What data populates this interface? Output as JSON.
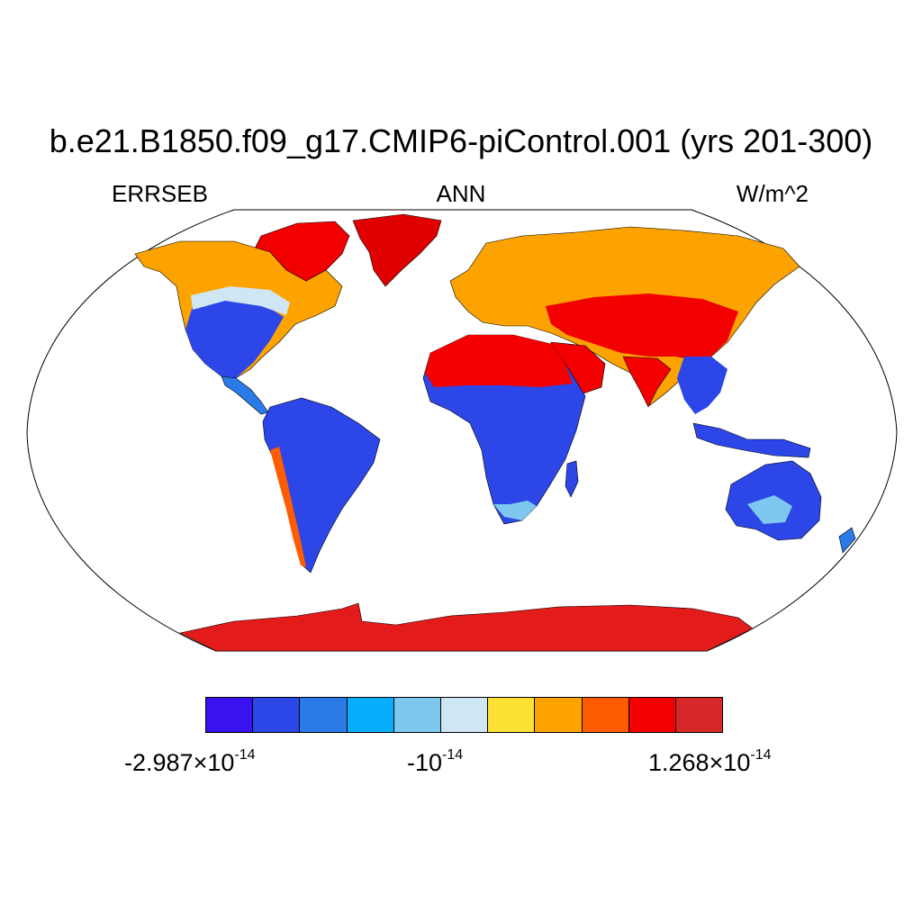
{
  "title": "b.e21.B1850.f09_g17.CMIP6-piControl.001 (yrs 201-300)",
  "subtitle_left": "ERRSEB",
  "subtitle_center": "ANN",
  "subtitle_right": "W/m^2",
  "colorbar": {
    "colors": [
      "#3a12f0",
      "#2c46e8",
      "#2a7ae8",
      "#08aefb",
      "#7ec8ef",
      "#cfe6f5",
      "#fde135",
      "#fda300",
      "#fd5c00",
      "#f50000",
      "#d62828"
    ],
    "label_min": {
      "mantissa": "-2.987",
      "times": "×10",
      "exp": "-14"
    },
    "label_mid": {
      "mantissa": "-10",
      "exp": "-14"
    },
    "label_max": {
      "mantissa": "1.268",
      "times": "×10",
      "exp": "-14"
    }
  },
  "map": {
    "projection": "robinson",
    "land_color_ocean": "#ffffff",
    "outline_color": "#000000"
  }
}
